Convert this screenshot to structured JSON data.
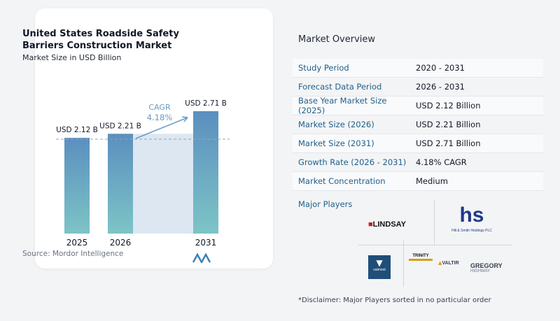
{
  "chart": {
    "title": "United States Roadside Safety Barriers Construction Market",
    "subtitle": "Market Size in USD Billion",
    "source": "Source: Mordor Intelligence",
    "cagr_label": "CAGR",
    "cagr_value": "4.18%"
  },
  "chart_data": {
    "type": "bar",
    "title": "United States Roadside Safety Barriers Construction Market",
    "subtitle": "Market Size in USD Billion",
    "categories": [
      "2025",
      "2026",
      "2031"
    ],
    "values": [
      2.12,
      2.21,
      2.71
    ],
    "data_labels": [
      "USD 2.12 B",
      "USD 2.21 B",
      "USD 2.71 B"
    ],
    "xlabel": "",
    "ylabel": "",
    "annotation": "CAGR 4.18%",
    "colors": {
      "bar_top": "#5b8fbf",
      "bar_bottom": "#7dc4c6",
      "band": "#dce7f2",
      "accent": "#6b9ac4"
    }
  },
  "overview": {
    "title": "Market Overview",
    "rows": [
      {
        "key": "Study Period",
        "value": "2020 - 2031"
      },
      {
        "key": "Forecast Data Period",
        "value": "2026 - 2031"
      },
      {
        "key": "Base Year Market Size (2025)",
        "value": "USD 2.12 Billion"
      },
      {
        "key": "Market Size (2026)",
        "value": "USD 2.21 Billion"
      },
      {
        "key": "Market Size (2031)",
        "value": "USD 2.71 Billion"
      },
      {
        "key": "Growth Rate (2026 - 2031)",
        "value": "4.18% CAGR"
      },
      {
        "key": "Market Concentration",
        "value": "Medium"
      }
    ]
  },
  "players": {
    "label": "Major Players",
    "logos": {
      "lindsay": "LINDSAY",
      "hs": "hs",
      "hs_sub": "Hill & Smith Holdings PLC",
      "valmont": "valmont",
      "trinity": "TRINITY",
      "valtir": "VALTIR",
      "gregory": "GREGORY",
      "gregory_sub": "HIGHWAY"
    }
  },
  "disclaimer": "*Disclaimer: Major Players sorted in no particular order"
}
